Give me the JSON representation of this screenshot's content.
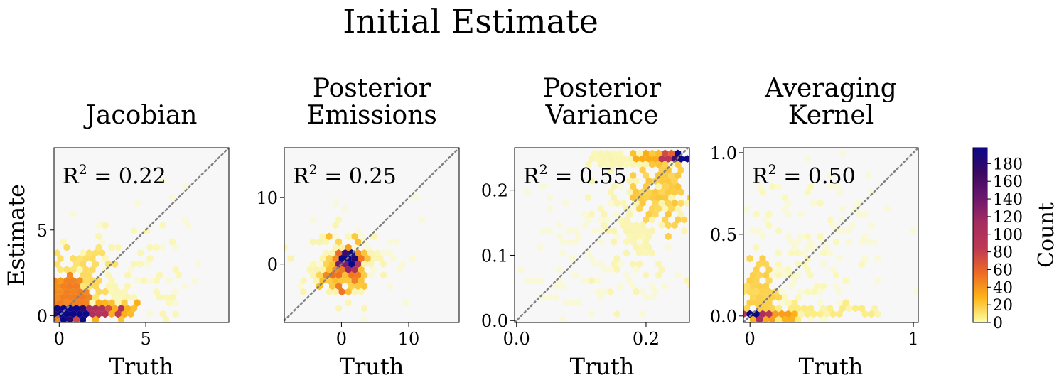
{
  "figure": {
    "title": "Initial Estimate"
  },
  "chart_data": [
    {
      "type": "hexbin",
      "title_lines": [
        "Jacobian"
      ],
      "xlabel": "Truth",
      "ylabel": "Estimate",
      "xlim": [
        -0.3,
        9.8
      ],
      "ylim": [
        -0.4,
        9.8
      ],
      "xticks": [
        0,
        5
      ],
      "yticks": [
        0,
        5
      ],
      "annotation": "0.22",
      "identity_line": true,
      "clusters": [
        {
          "x": 0.5,
          "y": 0.15,
          "sx": 0.35,
          "sy": 0.12,
          "n": 150,
          "c": 190
        },
        {
          "x": 1.6,
          "y": 0.25,
          "sx": 0.6,
          "sy": 0.12,
          "n": 150,
          "c": 85
        },
        {
          "x": 0.6,
          "y": 1.1,
          "sx": 0.4,
          "sy": 0.55,
          "n": 160,
          "c": 40
        },
        {
          "x": 2.2,
          "y": 0.4,
          "sx": 0.9,
          "sy": 0.2,
          "n": 110,
          "c": 25
        },
        {
          "x": 1.2,
          "y": 2.2,
          "sx": 0.8,
          "sy": 0.8,
          "n": 90,
          "c": 12
        },
        {
          "x": 3.5,
          "y": 1.8,
          "sx": 2.0,
          "sy": 1.5,
          "n": 80,
          "c": 3
        },
        {
          "x": 5.5,
          "y": 3.5,
          "sx": 2.5,
          "sy": 2.5,
          "n": 40,
          "c": 1
        }
      ]
    },
    {
      "type": "hexbin",
      "title_lines": [
        "Posterior",
        "Emissions"
      ],
      "xlabel": "Truth",
      "ylabel": "",
      "xlim": [
        -8.5,
        17.5
      ],
      "ylim": [
        -8.8,
        17.5
      ],
      "xticks": [
        0,
        10
      ],
      "yticks": [
        0,
        10
      ],
      "annotation": "0.25",
      "identity_line": true,
      "clusters": [
        {
          "x": 1.0,
          "y": 1.0,
          "sx": 0.35,
          "sy": 0.35,
          "n": 25,
          "c": 190
        },
        {
          "x": 1.0,
          "y": 0.2,
          "sx": 0.6,
          "sy": 0.6,
          "n": 40,
          "c": 110
        },
        {
          "x": 0.8,
          "y": -0.2,
          "sx": 1.0,
          "sy": 1.0,
          "n": 70,
          "c": 45
        },
        {
          "x": 0.5,
          "y": -0.5,
          "sx": 1.6,
          "sy": 1.5,
          "n": 120,
          "c": 20
        },
        {
          "x": 0.3,
          "y": -0.8,
          "sx": 2.8,
          "sy": 2.6,
          "n": 110,
          "c": 4
        },
        {
          "x": 3.0,
          "y": 1.0,
          "sx": 5.0,
          "sy": 4.0,
          "n": 40,
          "c": 1
        }
      ]
    },
    {
      "type": "hexbin",
      "title_lines": [
        "Posterior",
        "Variance"
      ],
      "xlabel": "Truth",
      "ylabel": "",
      "xlim": [
        -0.003,
        0.267
      ],
      "ylim": [
        -0.003,
        0.265
      ],
      "xticks": [
        0.0,
        0.2
      ],
      "yticks": [
        0.0,
        0.1,
        0.2
      ],
      "annotation": "0.55",
      "identity_line": true,
      "clusters": [
        {
          "x": 0.252,
          "y": 0.251,
          "sx": 0.004,
          "sy": 0.001,
          "n": 12,
          "c": 185
        },
        {
          "x": 0.24,
          "y": 0.25,
          "sx": 0.008,
          "sy": 0.002,
          "n": 40,
          "c": 70
        },
        {
          "x": 0.215,
          "y": 0.249,
          "sx": 0.015,
          "sy": 0.003,
          "n": 60,
          "c": 25
        },
        {
          "x": 0.17,
          "y": 0.247,
          "sx": 0.03,
          "sy": 0.004,
          "n": 70,
          "c": 3
        },
        {
          "x": 0.225,
          "y": 0.205,
          "sx": 0.02,
          "sy": 0.03,
          "n": 110,
          "c": 18
        },
        {
          "x": 0.19,
          "y": 0.15,
          "sx": 0.04,
          "sy": 0.05,
          "n": 110,
          "c": 4
        },
        {
          "x": 0.12,
          "y": 0.09,
          "sx": 0.07,
          "sy": 0.06,
          "n": 100,
          "c": 1
        }
      ]
    },
    {
      "type": "hexbin",
      "title_lines": [
        "Averaging",
        "Kernel"
      ],
      "xlabel": "Truth",
      "ylabel": "",
      "xlim": [
        -0.04,
        1.03
      ],
      "ylim": [
        -0.04,
        1.03
      ],
      "xticks": [
        0,
        1
      ],
      "yticks": [
        0.0,
        0.5,
        1.0
      ],
      "annotation": "0.50",
      "identity_line": true,
      "clusters": [
        {
          "x": 0.01,
          "y": 0.0,
          "sx": 0.008,
          "sy": 0.004,
          "n": 20,
          "c": 190
        },
        {
          "x": 0.05,
          "y": 0.005,
          "sx": 0.03,
          "sy": 0.006,
          "n": 40,
          "c": 90
        },
        {
          "x": 0.14,
          "y": 0.005,
          "sx": 0.06,
          "sy": 0.006,
          "n": 90,
          "c": 30
        },
        {
          "x": 0.35,
          "y": 0.02,
          "sx": 0.18,
          "sy": 0.02,
          "n": 80,
          "c": 6
        },
        {
          "x": 0.06,
          "y": 0.12,
          "sx": 0.05,
          "sy": 0.12,
          "n": 90,
          "c": 15
        },
        {
          "x": 0.25,
          "y": 0.35,
          "sx": 0.2,
          "sy": 0.25,
          "n": 110,
          "c": 2
        },
        {
          "x": 0.5,
          "y": 0.6,
          "sx": 0.3,
          "sy": 0.3,
          "n": 60,
          "c": 1
        }
      ]
    }
  ],
  "colorbar": {
    "label": "Count",
    "min": 0,
    "max": 198,
    "ticks": [
      0,
      20,
      40,
      60,
      80,
      100,
      120,
      140,
      160,
      180
    ],
    "colormap": [
      "#fcffa4",
      "#fcb418",
      "#ed6925",
      "#bc3754",
      "#a52c60",
      "#6a176e",
      "#3a0963",
      "#0d0887"
    ]
  }
}
